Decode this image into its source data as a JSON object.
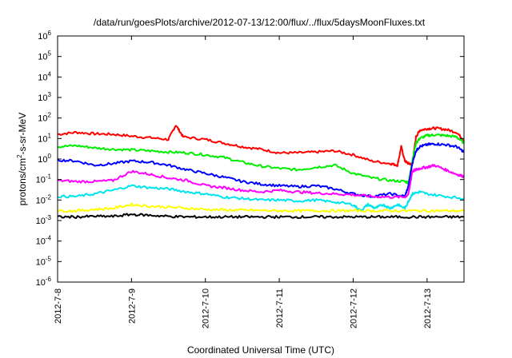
{
  "chart_data": {
    "type": "line",
    "title": "/data/run/goesPlots/archive/2012-07-13/12:00/flux/../flux/5daysMoonFluxes.txt",
    "xlabel": "Coordinated Universal Time (UTC)",
    "ylabel": {
      "base": "protons/cm",
      "exp": "2",
      "rest": "-s-sr-MeV"
    },
    "x_tick_labels": [
      "2012-7-8",
      "2012-7-9",
      "2012-7-10",
      "2012-7-11",
      "2012-7-12",
      "2012-7-13"
    ],
    "x_range_days": [
      0,
      5.5
    ],
    "y_scale": "log",
    "ylim": [
      1e-06,
      1000000.0
    ],
    "y_ticks": [
      {
        "base": "10",
        "exp": "-6"
      },
      {
        "base": "10",
        "exp": "-5"
      },
      {
        "base": "10",
        "exp": "-4"
      },
      {
        "base": "10",
        "exp": "-3"
      },
      {
        "base": "10",
        "exp": "-2"
      },
      {
        "base": "10",
        "exp": "-1"
      },
      {
        "base": "10",
        "exp": "0"
      },
      {
        "base": "10",
        "exp": "1"
      },
      {
        "base": "10",
        "exp": "2"
      },
      {
        "base": "10",
        "exp": "3"
      },
      {
        "base": "10",
        "exp": "4"
      },
      {
        "base": "10",
        "exp": "5"
      },
      {
        "base": "10",
        "exp": "6"
      }
    ],
    "grid": false,
    "series": [
      {
        "color": "#ff0000",
        "x": [
          0,
          0.25,
          0.5,
          0.75,
          1.0,
          1.25,
          1.5,
          1.6,
          1.7,
          2.0,
          2.25,
          2.5,
          2.75,
          3.0,
          3.25,
          3.5,
          3.75,
          4.0,
          4.25,
          4.5,
          4.6,
          4.65,
          4.7,
          4.75,
          4.8,
          4.85,
          4.9,
          5.0,
          5.1,
          5.25,
          5.4,
          5.5
        ],
        "y": [
          16,
          20,
          17,
          16,
          13,
          11,
          9,
          45,
          12,
          9,
          6,
          4,
          3,
          2,
          2,
          2.2,
          2.5,
          1.6,
          0.8,
          0.6,
          0.5,
          4,
          0.8,
          0.6,
          0.55,
          12,
          25,
          30,
          32,
          28,
          20,
          8
        ]
      },
      {
        "color": "#00ee00",
        "x": [
          0,
          0.25,
          0.5,
          0.75,
          1.0,
          1.25,
          1.5,
          1.75,
          2.0,
          2.25,
          2.5,
          2.75,
          3.0,
          3.25,
          3.5,
          3.75,
          4.0,
          4.25,
          4.5,
          4.7,
          4.75,
          4.8,
          4.85,
          4.9,
          5.0,
          5.1,
          5.25,
          5.4,
          5.5
        ],
        "y": [
          4,
          4.5,
          3.5,
          3,
          2.8,
          2.5,
          2.2,
          2,
          1.6,
          1.2,
          0.7,
          0.45,
          0.35,
          0.3,
          0.4,
          0.5,
          0.2,
          0.12,
          0.09,
          0.08,
          0.07,
          0.8,
          6,
          10,
          14,
          15,
          14,
          12,
          6
        ]
      },
      {
        "color": "#0000ff",
        "x": [
          0,
          0.25,
          0.5,
          0.75,
          1.0,
          1.25,
          1.5,
          1.75,
          2.0,
          2.25,
          2.5,
          2.75,
          3.0,
          3.25,
          3.5,
          3.75,
          4.0,
          4.25,
          4.5,
          4.7,
          4.75,
          4.8,
          4.85,
          4.9,
          5.0,
          5.1,
          5.25,
          5.4,
          5.5
        ],
        "y": [
          0.9,
          0.8,
          0.5,
          0.6,
          0.8,
          0.7,
          0.5,
          0.3,
          0.2,
          0.13,
          0.08,
          0.06,
          0.05,
          0.045,
          0.05,
          0.035,
          0.02,
          0.015,
          0.02,
          0.015,
          0.05,
          0.6,
          2.5,
          4,
          5,
          5.5,
          5,
          4,
          2.2
        ]
      },
      {
        "color": "#ff00ff",
        "x": [
          0,
          0.25,
          0.5,
          0.75,
          1.0,
          1.25,
          1.5,
          1.75,
          2.0,
          2.25,
          2.5,
          2.75,
          3.0,
          3.25,
          3.5,
          3.75,
          4.0,
          4.25,
          4.5,
          4.7,
          4.75,
          4.8,
          4.85,
          4.9,
          5.0,
          5.1,
          5.25,
          5.4,
          5.5
        ],
        "y": [
          0.09,
          0.08,
          0.08,
          0.09,
          0.25,
          0.18,
          0.12,
          0.09,
          0.05,
          0.04,
          0.03,
          0.025,
          0.03,
          0.025,
          0.022,
          0.02,
          0.018,
          0.015,
          0.014,
          0.014,
          0.02,
          0.25,
          0.3,
          0.35,
          0.4,
          0.5,
          0.3,
          0.18,
          0.14
        ]
      },
      {
        "color": "#00e5ee",
        "x": [
          0,
          0.25,
          0.5,
          0.75,
          1.0,
          1.25,
          1.5,
          1.75,
          2.0,
          2.25,
          2.5,
          2.75,
          3.0,
          3.25,
          3.5,
          3.75,
          4.0,
          4.1,
          4.2,
          4.3,
          4.4,
          4.5,
          4.6,
          4.7,
          4.75,
          4.8,
          4.9,
          5.0,
          5.25,
          5.5
        ],
        "y": [
          0.015,
          0.015,
          0.02,
          0.03,
          0.05,
          0.04,
          0.035,
          0.025,
          0.02,
          0.014,
          0.012,
          0.01,
          0.01,
          0.009,
          0.01,
          0.008,
          0.006,
          0.003,
          0.006,
          0.004,
          0.006,
          0.004,
          0.006,
          0.004,
          0.009,
          0.02,
          0.025,
          0.02,
          0.015,
          0.012
        ]
      },
      {
        "color": "#ffff00",
        "x": [
          0,
          0.25,
          0.5,
          0.75,
          1.0,
          1.25,
          1.5,
          1.75,
          2.0,
          2.25,
          2.5,
          2.75,
          3.0,
          3.25,
          3.5,
          3.75,
          4.0,
          4.25,
          4.5,
          4.75,
          5.0,
          5.25,
          5.5
        ],
        "y": [
          0.003,
          0.003,
          0.0035,
          0.004,
          0.006,
          0.005,
          0.0045,
          0.004,
          0.0035,
          0.0033,
          0.0032,
          0.0031,
          0.003,
          0.003,
          0.003,
          0.003,
          0.003,
          0.003,
          0.003,
          0.003,
          0.003,
          0.003,
          0.003
        ]
      },
      {
        "color": "#000000",
        "x": [
          0,
          0.25,
          0.5,
          0.75,
          1.0,
          1.25,
          1.5,
          1.75,
          2.0,
          2.25,
          2.5,
          2.75,
          3.0,
          3.25,
          3.5,
          3.75,
          4.0,
          4.25,
          4.5,
          4.75,
          5.0,
          5.25,
          5.5
        ],
        "y": [
          0.0015,
          0.0015,
          0.0016,
          0.0016,
          0.002,
          0.0018,
          0.0016,
          0.0015,
          0.0015,
          0.0015,
          0.0015,
          0.0015,
          0.0015,
          0.0015,
          0.0015,
          0.0015,
          0.0015,
          0.0015,
          0.0015,
          0.0015,
          0.0015,
          0.0015,
          0.0015
        ]
      }
    ]
  }
}
